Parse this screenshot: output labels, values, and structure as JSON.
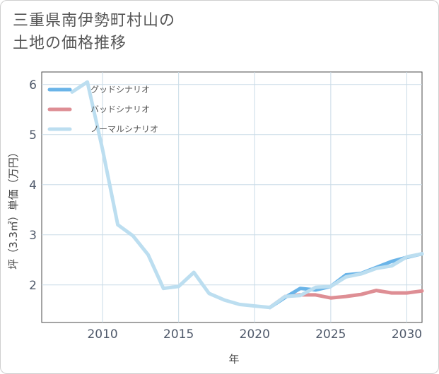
{
  "title_lines": [
    "三重県南伊勢町村山の",
    "土地の価格推移"
  ],
  "chart_data": {
    "type": "line",
    "title": "三重県南伊勢町村山の土地の価格推移",
    "xlabel": "年",
    "ylabel": "坪（3.3㎡）単価（万円）",
    "xlim": [
      2006,
      2031
    ],
    "ylim": [
      1.25,
      6.25
    ],
    "x_ticks": [
      2010,
      2015,
      2020,
      2025,
      2030
    ],
    "y_ticks": [
      2,
      3,
      4,
      5,
      6
    ],
    "grid": true,
    "legend_position": "top-left",
    "series": [
      {
        "name": "グッドシナリオ",
        "color": "#6ab4e8",
        "x": [
          2021,
          2022,
          2023,
          2024,
          2025,
          2026,
          2027,
          2028,
          2029,
          2030,
          2031
        ],
        "y": [
          1.55,
          1.75,
          1.93,
          1.9,
          1.97,
          2.2,
          2.23,
          2.35,
          2.47,
          2.55,
          2.62
        ]
      },
      {
        "name": "バッドシナリオ",
        "color": "#de8e94",
        "x": [
          2021,
          2022,
          2023,
          2024,
          2025,
          2026,
          2027,
          2028,
          2029,
          2030,
          2031
        ],
        "y": [
          1.55,
          1.77,
          1.8,
          1.8,
          1.74,
          1.77,
          1.81,
          1.89,
          1.84,
          1.84,
          1.88
        ]
      },
      {
        "name": "ノーマルシナリオ",
        "color": "#bcdef0",
        "x": [
          2008,
          2009,
          2010,
          2011,
          2012,
          2013,
          2014,
          2015,
          2016,
          2017,
          2018,
          2019,
          2020,
          2021,
          2022,
          2023,
          2024,
          2025,
          2026,
          2027,
          2028,
          2029,
          2030,
          2031
        ],
        "y": [
          5.85,
          6.05,
          4.7,
          3.2,
          2.98,
          2.6,
          1.93,
          1.97,
          2.25,
          1.83,
          1.7,
          1.61,
          1.58,
          1.55,
          1.77,
          1.79,
          1.95,
          1.97,
          2.16,
          2.22,
          2.33,
          2.38,
          2.56,
          2.62
        ]
      }
    ]
  }
}
